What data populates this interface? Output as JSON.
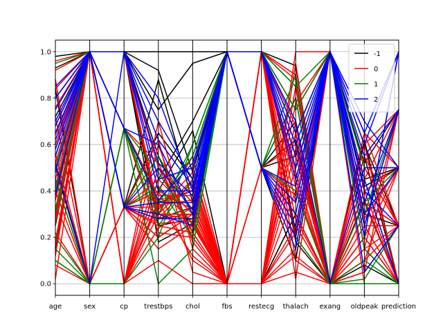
{
  "chart_data": {
    "type": "parallel_coordinates",
    "axes": [
      "age",
      "sex",
      "cp",
      "trestbps",
      "chol",
      "fbs",
      "restecg",
      "thalach",
      "exang",
      "oldpeak",
      "prediction"
    ],
    "ylim": [
      -0.05,
      1.05
    ],
    "yticks": [
      "0.0",
      "0.2",
      "0.4",
      "0.6",
      "0.8",
      "1.0"
    ],
    "grid": true,
    "legend": {
      "placement": "top-right",
      "entries": [
        {
          "label": "-1",
          "color": "#000000"
        },
        {
          "label": "0",
          "color": "#ff0000"
        },
        {
          "label": "1",
          "color": "#008000"
        },
        {
          "label": "2",
          "color": "#0000ff"
        }
      ]
    },
    "series": [
      {
        "class": "-1",
        "color": "#000000",
        "lines": [
          [
            0.98,
            1,
            1,
            1,
            1,
            1,
            1,
            0.94,
            0,
            0.55,
            0
          ],
          [
            0.93,
            1,
            1,
            0.92,
            0.48,
            1,
            0.5,
            0.62,
            0,
            0.36,
            0
          ],
          [
            0.88,
            0,
            0.33,
            0.88,
            0.35,
            1,
            1,
            0.45,
            1,
            0.42,
            0.5
          ],
          [
            0.84,
            0,
            0.33,
            0.4,
            0.66,
            0,
            0,
            0.3,
            0,
            0.6,
            0.25
          ],
          [
            0.8,
            1,
            1,
            0.55,
            0.22,
            1,
            0.5,
            0.8,
            0,
            0.2,
            1
          ],
          [
            0.72,
            1,
            0.33,
            0.2,
            0.3,
            1,
            1,
            0.2,
            1,
            0.25,
            0.75
          ],
          [
            0.6,
            1,
            1,
            0.75,
            0.95,
            1,
            1,
            0.18,
            0,
            0.62,
            0
          ],
          [
            0.55,
            1,
            1,
            0.3,
            0.55,
            1,
            0.5,
            0.7,
            0,
            0.4,
            0.5
          ],
          [
            0.5,
            0,
            0,
            0.35,
            0.4,
            1,
            0.5,
            0.55,
            0,
            0.3,
            0.25
          ],
          [
            0.45,
            0,
            0,
            0.45,
            0.7,
            1,
            1,
            0.85,
            0,
            0.45,
            0.5
          ],
          [
            0.4,
            1,
            1,
            0.25,
            0.28,
            1,
            0.5,
            0.1,
            1,
            0.15,
            0
          ],
          [
            0.3,
            1,
            1,
            0.28,
            0.33,
            1,
            1,
            0.65,
            1,
            0.52,
            0.75
          ],
          [
            0.25,
            1,
            0.33,
            0.65,
            0.45,
            0,
            0,
            0.3,
            0,
            0.08,
            0
          ],
          [
            0.15,
            1,
            1,
            0.18,
            0.26,
            1,
            1,
            0.22,
            1,
            0.35,
            0.25
          ]
        ]
      },
      {
        "class": "0",
        "color": "#ff0000",
        "lines": [
          [
            0.02,
            1,
            0,
            0.1,
            0.0,
            0,
            0,
            1.0,
            1,
            0.0,
            0.0
          ],
          [
            0.08,
            0,
            0,
            0.35,
            0.12,
            0,
            0,
            0.95,
            0,
            0.1,
            0.25
          ],
          [
            0.12,
            1,
            0.33,
            0.25,
            0.22,
            0,
            1,
            0.9,
            0,
            0.3,
            0.5
          ],
          [
            0.18,
            1,
            0.33,
            0.2,
            0.3,
            0,
            0,
            0.85,
            0,
            0.2,
            0.0
          ],
          [
            0.22,
            0,
            0.67,
            0.3,
            0.28,
            0,
            1,
            0.75,
            1,
            0.6,
            0.75
          ],
          [
            0.28,
            1,
            0,
            0.4,
            0.1,
            0,
            0,
            0.7,
            0,
            0.05,
            0.25
          ],
          [
            0.32,
            1,
            1,
            0.5,
            0.35,
            0,
            0.5,
            0.6,
            0,
            0.4,
            0.5
          ],
          [
            0.36,
            1,
            0.67,
            0.22,
            0.2,
            0,
            1,
            0.55,
            0,
            0.5,
            0.25
          ],
          [
            0.4,
            0,
            0.33,
            0.3,
            0.45,
            0,
            0,
            0.5,
            1,
            0.25,
            0.0
          ],
          [
            0.45,
            1,
            0,
            0.6,
            0.18,
            0,
            1,
            0.45,
            0,
            0.65,
            0.5
          ],
          [
            0.48,
            1,
            0.33,
            0.33,
            0.42,
            0,
            0,
            0.4,
            0,
            0.15,
            0.75
          ],
          [
            0.52,
            1,
            1,
            0.28,
            0.3,
            0,
            1,
            0.35,
            1,
            0.35,
            0.25
          ],
          [
            0.56,
            0,
            0,
            0.45,
            0.5,
            0,
            0.5,
            0.3,
            0,
            0.45,
            0.0
          ],
          [
            0.6,
            1,
            0.33,
            0.15,
            0.25,
            0,
            0,
            0.25,
            0,
            0.3,
            0.5
          ],
          [
            0.64,
            1,
            0.67,
            0.38,
            0.38,
            0,
            1,
            0.2,
            0,
            0.55,
            0.25
          ],
          [
            0.68,
            1,
            0,
            0.7,
            0.15,
            0,
            0,
            0.15,
            1,
            0.2,
            0.0
          ],
          [
            0.72,
            0,
            0.33,
            0.4,
            0.32,
            0,
            1,
            0.1,
            0,
            0.1,
            0.5
          ],
          [
            0.76,
            1,
            1,
            0.32,
            0.48,
            0,
            0,
            0.05,
            0,
            0.35,
            0.25
          ],
          [
            0.8,
            1,
            0,
            0.5,
            0.22,
            0,
            1,
            0.02,
            1,
            0.45,
            0.75
          ],
          [
            0.84,
            1,
            0.33,
            0.26,
            0.27,
            0,
            0,
            0.12,
            0,
            0.25,
            0.25
          ],
          [
            0.88,
            0,
            0,
            0.36,
            0.4,
            0,
            1,
            0.28,
            0,
            0.6,
            0.0
          ],
          [
            0.92,
            1,
            0.33,
            0.45,
            0.3,
            0,
            0.5,
            0.38,
            1,
            0.3,
            0.5
          ],
          [
            0.96,
            1,
            1,
            0.3,
            0.55,
            0,
            1,
            0.48,
            0,
            0.15,
            0.25
          ],
          [
            0.5,
            1,
            0,
            0.24,
            0.33,
            0,
            0,
            0.58,
            0,
            0.4,
            0.0
          ],
          [
            0.42,
            1,
            0.33,
            0.42,
            0.26,
            0,
            1,
            0.68,
            0,
            0.2,
            0.5
          ],
          [
            0.34,
            0,
            0,
            0.34,
            0.36,
            0,
            0,
            0.78,
            1,
            0.65,
            0.25
          ],
          [
            0.26,
            1,
            0.33,
            0.28,
            0.44,
            0,
            1,
            0.88,
            0,
            0.35,
            0.0
          ],
          [
            0.16,
            1,
            0.67,
            0.52,
            0.2,
            0,
            0,
            0.65,
            0,
            0.05,
            0.75
          ],
          [
            0.1,
            0,
            0,
            0.3,
            0.3,
            0,
            1,
            0.42,
            0,
            0.5,
            0.25
          ],
          [
            0.58,
            1,
            0.33,
            0.62,
            0.05,
            0,
            0,
            0.22,
            1,
            0.28,
            0.5
          ]
        ]
      },
      {
        "class": "1",
        "color": "#008000",
        "lines": [
          [
            0.95,
            1,
            0.67,
            0.0,
            0.15,
            1,
            0.5,
            0.8,
            0,
            0.1,
            0.0
          ],
          [
            0.1,
            0,
            0,
            0.2,
            0.6,
            1,
            1,
            0.55,
            1,
            0.05,
            0.25
          ],
          [
            0.15,
            0,
            0.67,
            0.35,
            0.55,
            1,
            0.5,
            0.9,
            0,
            0.35,
            0.5
          ],
          [
            0.5,
            1,
            0.33,
            0.55,
            0.3,
            1,
            1,
            0.65,
            1,
            0.15,
            0.0
          ],
          [
            0.45,
            0,
            0.67,
            0.25,
            0.45,
            1,
            0.5,
            0.4,
            0,
            0.02,
            0.25
          ],
          [
            0.3,
            1,
            0.33,
            0.42,
            0.2,
            1,
            1,
            0.75,
            1,
            0.5,
            0.5
          ],
          [
            0.2,
            0,
            0.67,
            0.3,
            0.6,
            1,
            0.5,
            0.2,
            0,
            0.0,
            0.0
          ],
          [
            0.4,
            1,
            0.67,
            0.48,
            0.25,
            1,
            1,
            0.85,
            1,
            0.3,
            0.75
          ]
        ]
      },
      {
        "class": "2",
        "color": "#0000ff",
        "lines": [
          [
            0.8,
            1,
            1,
            0.8,
            0.4,
            1,
            0.5,
            0.25,
            1,
            0.6,
            1.0
          ],
          [
            0.75,
            1,
            0.67,
            0.6,
            0.3,
            1,
            1,
            0.45,
            1,
            0.35,
            0.75
          ],
          [
            0.7,
            1,
            0.33,
            0.3,
            0.25,
            1,
            0.5,
            0.35,
            1,
            0.7,
            0.5
          ],
          [
            0.65,
            1,
            1,
            0.45,
            0.5,
            1,
            1,
            0.65,
            1,
            0.2,
            1.0
          ],
          [
            0.55,
            1,
            0.33,
            0.35,
            0.35,
            1,
            0.5,
            0.15,
            1,
            0.05,
            0.25
          ],
          [
            0.52,
            0,
            1,
            0.7,
            0.45,
            1,
            1,
            0.55,
            1,
            0.45,
            0.0
          ],
          [
            0.48,
            1,
            0.33,
            0.28,
            0.28,
            1,
            0.5,
            0.3,
            1,
            0.55,
            0.75
          ],
          [
            0.58,
            1,
            1,
            0.4,
            0.4,
            1,
            1,
            0.6,
            1,
            0.3,
            0.5
          ],
          [
            0.62,
            1,
            0.33,
            0.5,
            0.32,
            1,
            0.5,
            0.42,
            1,
            0.65,
            1.0
          ],
          [
            0.38,
            1,
            0.67,
            0.36,
            0.52,
            1,
            1,
            0.5,
            1,
            0.25,
            0.75
          ],
          [
            0.68,
            1,
            1,
            0.52,
            0.38,
            1,
            0.5,
            0.2,
            1,
            0.4,
            0.25
          ],
          [
            0.85,
            1,
            1,
            0.62,
            0.42,
            1,
            1,
            0.7,
            0,
            0.5,
            0.5
          ]
        ]
      }
    ]
  }
}
